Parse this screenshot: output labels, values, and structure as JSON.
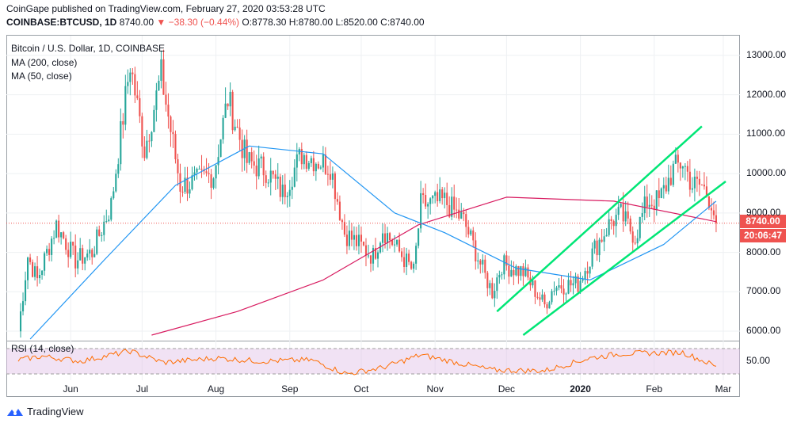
{
  "header": {
    "line1": "CoinGape published on TradingView.com, February 27, 2020 03:53:28 UTC",
    "symbol": "COINBASE:BTCUSD, 1D",
    "last": "8740.00",
    "change": "▼ −38.30 (−0.44%)",
    "ohlc": "O:8778.30 H:8780.00 L:8520.00 C:8740.00"
  },
  "legend": {
    "title": "Bitcoin / U.S. Dollar, 1D, COINBASE",
    "ma200": "MA (200, close)",
    "ma50": "MA (50, close)",
    "rsi": "RSI (14, close)"
  },
  "tags": {
    "price": "8740.00",
    "timer": "20:06:47",
    "price_color": "#ef5350"
  },
  "footer": {
    "brand": "TradingView",
    "logo_icon": "tradingview-logo-icon"
  },
  "colors": {
    "up": "#26a69a",
    "down": "#ef5350",
    "ma200": "#d81b60",
    "ma50": "#2196f3",
    "channel": "#00e676",
    "rsi_line": "#ff6d00",
    "rsi_band": "#e1bee7"
  },
  "chart_data": {
    "type": "candlestick",
    "title": "Bitcoin / U.S. Dollar, 1D, COINBASE",
    "ylim": [
      5800,
      13500
    ],
    "y_ticks": [
      "13000.00",
      "12000.00",
      "11000.00",
      "10000.00",
      "9000.00",
      "8000.00",
      "7000.00",
      "6000.00"
    ],
    "x_ticks": [
      "Jun",
      "Jul",
      "Aug",
      "Sep",
      "Oct",
      "Nov",
      "Dec",
      "2020",
      "Feb",
      "Mar"
    ],
    "rsi_ticks": [
      "50.00"
    ],
    "grid": true,
    "ohlc_path": [
      {
        "date": "2019-05-10",
        "close": 6000
      },
      {
        "date": "2019-05-14",
        "close": 7900
      },
      {
        "date": "2019-05-18",
        "close": 7300
      },
      {
        "date": "2019-05-26",
        "close": 8700
      },
      {
        "date": "2019-06-03",
        "close": 7800
      },
      {
        "date": "2019-06-10",
        "close": 8000
      },
      {
        "date": "2019-06-18",
        "close": 9200
      },
      {
        "date": "2019-06-26",
        "close": 12800
      },
      {
        "date": "2019-07-02",
        "close": 10600
      },
      {
        "date": "2019-07-09",
        "close": 12500
      },
      {
        "date": "2019-07-17",
        "close": 9700
      },
      {
        "date": "2019-07-24",
        "close": 9800
      },
      {
        "date": "2019-07-31",
        "close": 10000
      },
      {
        "date": "2019-08-06",
        "close": 11900
      },
      {
        "date": "2019-08-14",
        "close": 10300
      },
      {
        "date": "2019-08-22",
        "close": 10100
      },
      {
        "date": "2019-08-29",
        "close": 9500
      },
      {
        "date": "2019-09-06",
        "close": 10500
      },
      {
        "date": "2019-09-18",
        "close": 10200
      },
      {
        "date": "2019-09-24",
        "close": 8500
      },
      {
        "date": "2019-10-06",
        "close": 7900
      },
      {
        "date": "2019-10-10",
        "close": 8600
      },
      {
        "date": "2019-10-23",
        "close": 7500
      },
      {
        "date": "2019-10-26",
        "close": 9200
      },
      {
        "date": "2019-11-05",
        "close": 9300
      },
      {
        "date": "2019-11-13",
        "close": 8800
      },
      {
        "date": "2019-11-22",
        "close": 7400
      },
      {
        "date": "2019-11-25",
        "close": 7000
      },
      {
        "date": "2019-11-29",
        "close": 7700
      },
      {
        "date": "2019-12-08",
        "close": 7500
      },
      {
        "date": "2019-12-17",
        "close": 6650
      },
      {
        "date": "2019-12-21",
        "close": 7150
      },
      {
        "date": "2019-12-31",
        "close": 7200
      },
      {
        "date": "2020-01-07",
        "close": 8100
      },
      {
        "date": "2020-01-14",
        "close": 8800
      },
      {
        "date": "2020-01-18",
        "close": 8950
      },
      {
        "date": "2020-01-24",
        "close": 8400
      },
      {
        "date": "2020-01-29",
        "close": 9300
      },
      {
        "date": "2020-02-03",
        "close": 9300
      },
      {
        "date": "2020-02-09",
        "close": 10100
      },
      {
        "date": "2020-02-13",
        "close": 10300
      },
      {
        "date": "2020-02-17",
        "close": 9700
      },
      {
        "date": "2020-02-21",
        "close": 9700
      },
      {
        "date": "2020-02-25",
        "close": 9300
      },
      {
        "date": "2020-02-27",
        "close": 8740
      }
    ],
    "ma200": [
      {
        "date": "2019-07-05",
        "value": 5900
      },
      {
        "date": "2019-08-10",
        "value": 6500
      },
      {
        "date": "2019-09-15",
        "value": 7300
      },
      {
        "date": "2019-10-25",
        "value": 8700
      },
      {
        "date": "2019-12-01",
        "value": 9400
      },
      {
        "date": "2020-01-15",
        "value": 9300
      },
      {
        "date": "2020-02-27",
        "value": 8780
      }
    ],
    "ma50": [
      {
        "date": "2019-05-15",
        "value": 5800
      },
      {
        "date": "2019-06-15",
        "value": 7800
      },
      {
        "date": "2019-07-15",
        "value": 9700
      },
      {
        "date": "2019-08-15",
        "value": 10700
      },
      {
        "date": "2019-09-15",
        "value": 10500
      },
      {
        "date": "2019-10-15",
        "value": 9000
      },
      {
        "date": "2019-11-05",
        "value": 8500
      },
      {
        "date": "2019-12-05",
        "value": 7600
      },
      {
        "date": "2020-01-05",
        "value": 7300
      },
      {
        "date": "2020-02-05",
        "value": 8200
      },
      {
        "date": "2020-02-27",
        "value": 9300
      }
    ],
    "channel_upper": [
      {
        "date": "2019-11-27",
        "value": 6500
      },
      {
        "date": "2020-02-21",
        "value": 11200
      }
    ],
    "channel_lower": [
      {
        "date": "2019-12-08",
        "value": 5900
      },
      {
        "date": "2020-03-02",
        "value": 9800
      }
    ],
    "last_price": 8740.0,
    "rsi": [
      {
        "date": "2019-05-10",
        "value": 52
      },
      {
        "date": "2019-05-20",
        "value": 58
      },
      {
        "date": "2019-06-05",
        "value": 50
      },
      {
        "date": "2019-06-26",
        "value": 66
      },
      {
        "date": "2019-07-10",
        "value": 48
      },
      {
        "date": "2019-08-01",
        "value": 55
      },
      {
        "date": "2019-08-20",
        "value": 50
      },
      {
        "date": "2019-09-10",
        "value": 52
      },
      {
        "date": "2019-09-25",
        "value": 30
      },
      {
        "date": "2019-10-10",
        "value": 40
      },
      {
        "date": "2019-10-26",
        "value": 60
      },
      {
        "date": "2019-11-25",
        "value": 36
      },
      {
        "date": "2019-12-17",
        "value": 35
      },
      {
        "date": "2020-01-05",
        "value": 55
      },
      {
        "date": "2020-01-18",
        "value": 62
      },
      {
        "date": "2020-02-13",
        "value": 64
      },
      {
        "date": "2020-02-27",
        "value": 42
      }
    ]
  }
}
